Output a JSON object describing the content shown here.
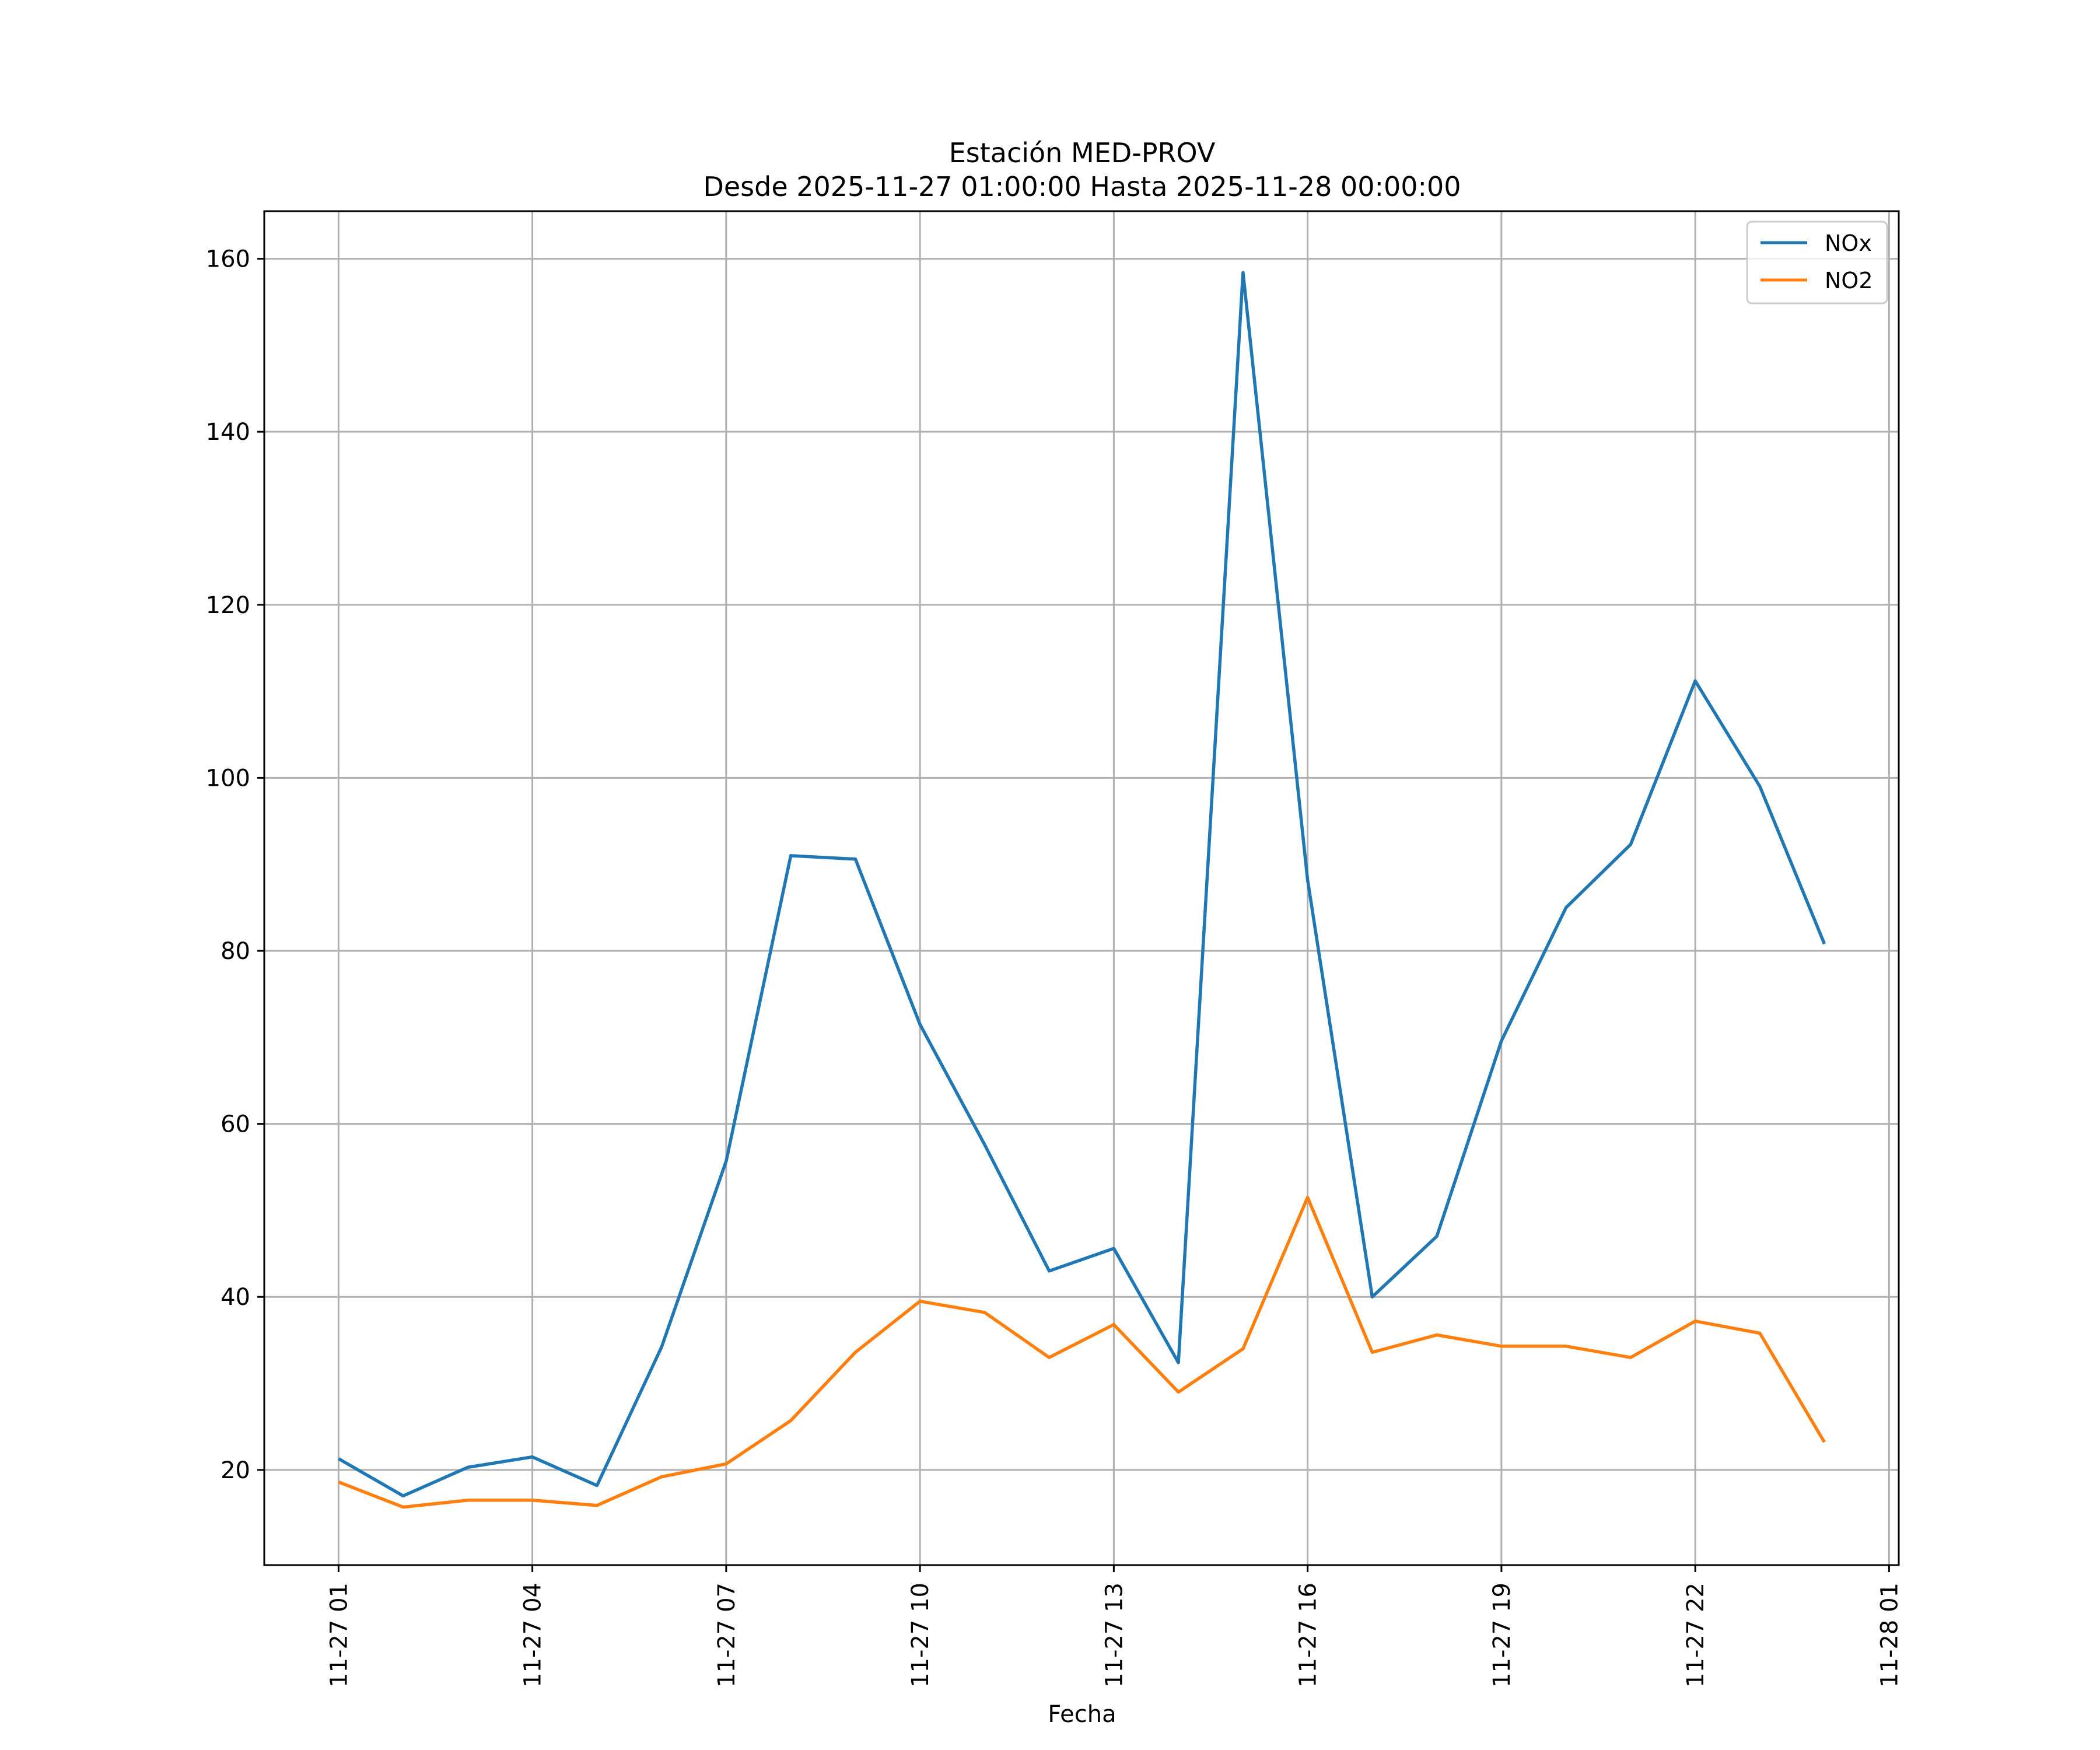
{
  "chart_data": {
    "type": "line",
    "title": "Estación MED-PROV",
    "subtitle": "Desde 2025-11-27 01:00:00 Hasta 2025-11-28 00:00:00",
    "xlabel": "Fecha",
    "ylabel": "",
    "x_ticks": [
      "11-27 01",
      "11-27 04",
      "11-27 07",
      "11-27 10",
      "11-27 13",
      "11-27 16",
      "11-27 19",
      "11-27 22",
      "11-28 01"
    ],
    "y_ticks": [
      20,
      40,
      60,
      80,
      100,
      120,
      140,
      160
    ],
    "ylim": [
      9,
      165.5
    ],
    "xlim_hours": [
      -1.15,
      24.15
    ],
    "grid": true,
    "legend_position": "top-right",
    "x": [
      "2025-11-27 01:00",
      "2025-11-27 02:00",
      "2025-11-27 03:00",
      "2025-11-27 04:00",
      "2025-11-27 05:00",
      "2025-11-27 06:00",
      "2025-11-27 07:00",
      "2025-11-27 08:00",
      "2025-11-27 09:00",
      "2025-11-27 10:00",
      "2025-11-27 11:00",
      "2025-11-27 12:00",
      "2025-11-27 13:00",
      "2025-11-27 14:00",
      "2025-11-27 15:00",
      "2025-11-27 16:00",
      "2025-11-27 17:00",
      "2025-11-27 18:00",
      "2025-11-27 19:00",
      "2025-11-27 20:00",
      "2025-11-27 21:00",
      "2025-11-27 22:00",
      "2025-11-27 23:00",
      "2025-11-28 00:00"
    ],
    "series": [
      {
        "name": "NOx",
        "color": "#1f77b4",
        "values": [
          21.3,
          17.0,
          20.3,
          21.5,
          18.2,
          34.2,
          55.7,
          91.0,
          90.6,
          71.5,
          57.6,
          43.0,
          45.6,
          32.4,
          158.4,
          88.2,
          40.0,
          47.0,
          69.6,
          85.0,
          92.3,
          111.2,
          99.0,
          80.8
        ]
      },
      {
        "name": "NO2",
        "color": "#ff7f0e",
        "values": [
          18.6,
          15.7,
          16.5,
          16.5,
          15.9,
          19.2,
          20.7,
          25.7,
          33.6,
          39.5,
          38.2,
          33.0,
          36.8,
          29.0,
          34.0,
          51.5,
          33.6,
          35.6,
          34.3,
          34.3,
          33.0,
          37.2,
          35.8,
          23.2
        ]
      }
    ]
  }
}
